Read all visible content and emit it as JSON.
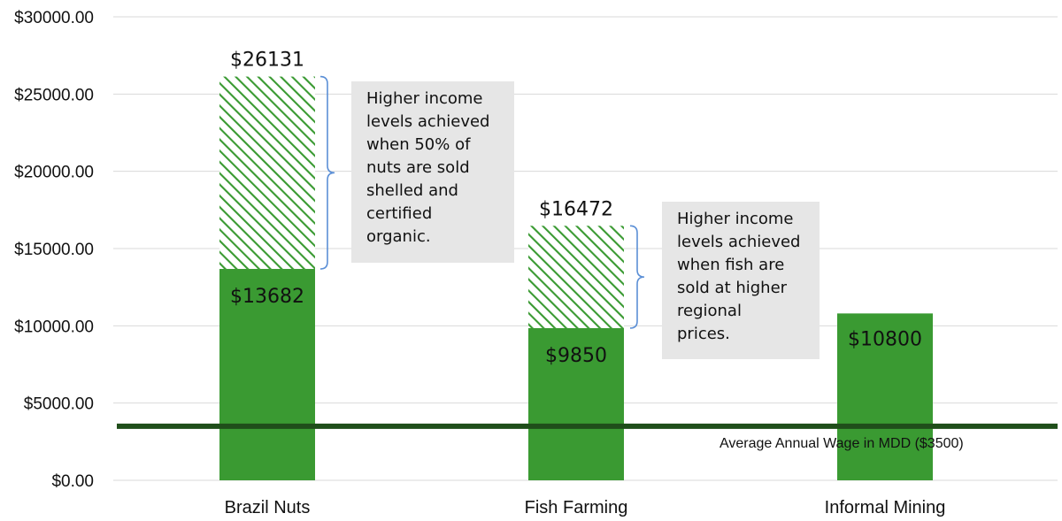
{
  "chart_data": {
    "type": "bar",
    "categories": [
      "Brazil Nuts",
      "Fish Farming",
      "Informal Mining"
    ],
    "base_values": [
      13682,
      9850,
      10800
    ],
    "high_values": [
      26131,
      16472,
      null
    ],
    "base_labels": [
      "$13682",
      "$9850",
      "$10800"
    ],
    "high_labels": [
      "$26131",
      "$16472",
      ""
    ],
    "ylim": [
      0,
      30000
    ],
    "yticks": [
      0,
      5000,
      10000,
      15000,
      20000,
      25000,
      30000
    ],
    "ytick_labels": [
      "$0.00",
      "$5000.00",
      "$10000.00",
      "$15000.00",
      "$20000.00",
      "$25000.00",
      "$30000.00"
    ],
    "grid": true,
    "reference_line": {
      "value": 3500,
      "label": "Average Annual Wage in MDD ($3500)"
    },
    "annotations": [
      {
        "lines": [
          "Higher income",
          "levels achieved",
          "when 50% of",
          "nuts are sold",
          "shelled and",
          "certified",
          "organic."
        ]
      },
      {
        "lines": [
          "Higher income",
          "levels achieved",
          "when fish are",
          "sold at higher",
          "regional",
          "prices."
        ]
      }
    ],
    "colors": {
      "bar": "#3a9a32",
      "hatch": "#3a9a32",
      "reference_line": "#1f4e1a",
      "grid": "#d9d9d9",
      "callout_bg": "#e6e6e6",
      "bracket": "#5b8fd6"
    }
  }
}
